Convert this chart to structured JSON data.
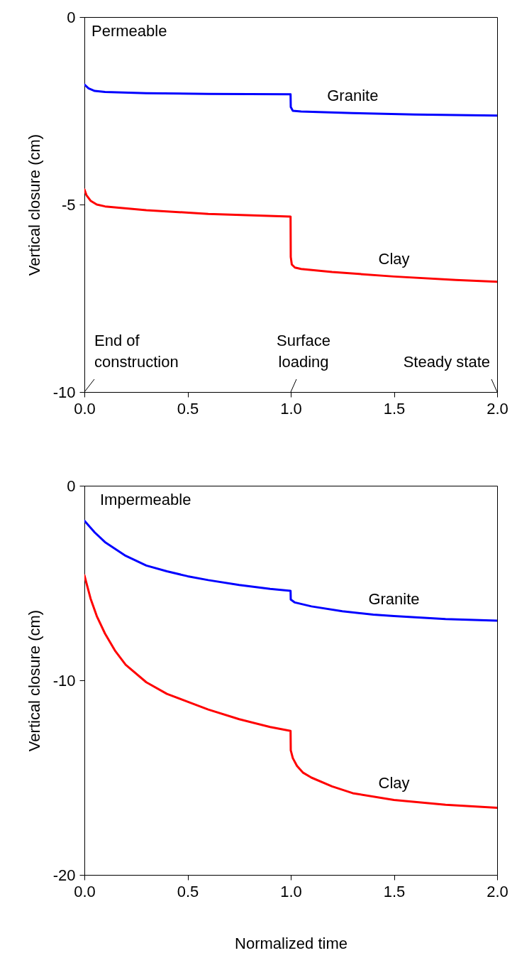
{
  "chart_data": [
    {
      "type": "line",
      "ylabel": "Vertical closure (cm)",
      "xlim": [
        0,
        2
      ],
      "ylim": [
        -10,
        0
      ],
      "xticks": [
        {
          "value": 0,
          "label": "0.0"
        },
        {
          "value": 0.5,
          "label": "0.5"
        },
        {
          "value": 1,
          "label": "1.0"
        },
        {
          "value": 1.5,
          "label": "1.5"
        },
        {
          "value": 2,
          "label": "2.0"
        }
      ],
      "yticks": [
        -10,
        -5,
        0
      ],
      "grid": false,
      "marker": "none",
      "line_style": "solid",
      "annotations": [
        "Permeable",
        "End of\nconstruction",
        "Surface\nloading",
        "Steady state"
      ],
      "series": [
        {
          "name": "Granite",
          "color": "#0000ff",
          "x": [
            0,
            0.02,
            0.05,
            0.1,
            0.3,
            0.6,
            0.999,
            1.0,
            1.01,
            1.05,
            1.3,
            1.6,
            2.0
          ],
          "values": [
            -1.8,
            -1.9,
            -1.97,
            -2.0,
            -2.03,
            -2.05,
            -2.06,
            -2.4,
            -2.5,
            -2.52,
            -2.56,
            -2.6,
            -2.63
          ]
        },
        {
          "name": "Clay",
          "color": "#ff0000",
          "x": [
            0,
            0.01,
            0.03,
            0.06,
            0.1,
            0.3,
            0.6,
            0.999,
            1.0,
            1.005,
            1.02,
            1.05,
            1.2,
            1.5,
            1.8,
            2.0
          ],
          "values": [
            -4.6,
            -4.75,
            -4.9,
            -5.0,
            -5.05,
            -5.15,
            -5.25,
            -5.32,
            -6.4,
            -6.6,
            -6.68,
            -6.72,
            -6.8,
            -6.92,
            -7.01,
            -7.06
          ]
        }
      ]
    },
    {
      "type": "line",
      "ylabel": "Vertical closure (cm)",
      "xlabel": "Normalized time",
      "xlim": [
        0,
        2
      ],
      "ylim": [
        -20,
        0
      ],
      "xticks": [
        {
          "value": 0,
          "label": "0.0"
        },
        {
          "value": 0.5,
          "label": "0.5"
        },
        {
          "value": 1,
          "label": "1.0"
        },
        {
          "value": 1.5,
          "label": "1.5"
        },
        {
          "value": 2,
          "label": "2.0"
        }
      ],
      "yticks": [
        -20,
        -10,
        0
      ],
      "grid": false,
      "marker": "none",
      "line_style": "solid",
      "annotations": [
        "Impermeable"
      ],
      "series": [
        {
          "name": "Granite",
          "color": "#0000ff",
          "x": [
            0,
            0.05,
            0.1,
            0.2,
            0.3,
            0.4,
            0.5,
            0.6,
            0.75,
            0.9,
            0.999,
            1.0,
            1.02,
            1.1,
            1.25,
            1.4,
            1.5,
            1.75,
            2.0
          ],
          "values": [
            -1.8,
            -2.4,
            -2.9,
            -3.6,
            -4.1,
            -4.4,
            -4.65,
            -4.85,
            -5.1,
            -5.3,
            -5.4,
            -5.85,
            -6.0,
            -6.2,
            -6.45,
            -6.62,
            -6.7,
            -6.85,
            -6.93
          ]
        },
        {
          "name": "Clay",
          "color": "#ff0000",
          "x": [
            0,
            0.03,
            0.06,
            0.1,
            0.15,
            0.2,
            0.3,
            0.4,
            0.5,
            0.6,
            0.75,
            0.9,
            0.999,
            1.0,
            1.01,
            1.03,
            1.06,
            1.1,
            1.2,
            1.3,
            1.5,
            1.75,
            2.0
          ],
          "values": [
            -4.6,
            -5.8,
            -6.7,
            -7.6,
            -8.5,
            -9.2,
            -10.1,
            -10.7,
            -11.1,
            -11.5,
            -12.0,
            -12.4,
            -12.6,
            -13.6,
            -14.0,
            -14.4,
            -14.75,
            -15.0,
            -15.45,
            -15.8,
            -16.15,
            -16.4,
            -16.55
          ]
        }
      ]
    }
  ]
}
